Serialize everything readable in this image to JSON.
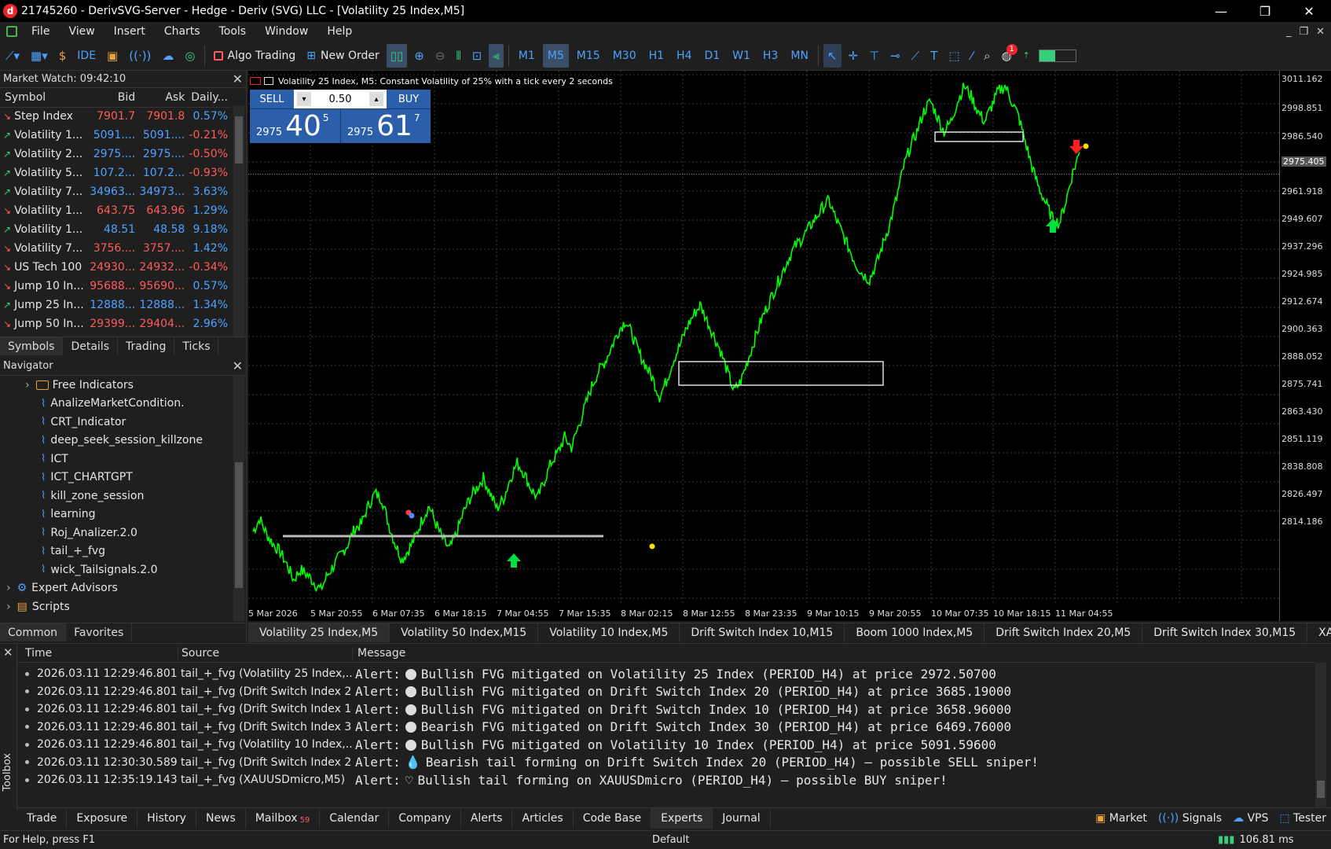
{
  "window": {
    "title": "21745260 - DerivSVG-Server - Hedge - Deriv (SVG) LLC - [Volatility 25 Index,M5]",
    "logo_letter": "d"
  },
  "menu": [
    "File",
    "View",
    "Insert",
    "Charts",
    "Tools",
    "Window",
    "Help"
  ],
  "toolbar": {
    "ide_label": "IDE",
    "algo_trading_label": "Algo Trading",
    "new_order_label": "New Order",
    "timeframes": [
      "M1",
      "M5",
      "M15",
      "M30",
      "H1",
      "H4",
      "D1",
      "W1",
      "H3",
      "MN"
    ],
    "active_timeframe": "M5",
    "notification_count": "1"
  },
  "market_watch": {
    "title": "Market Watch: 09:42:10",
    "columns": [
      "Symbol",
      "Bid",
      "Ask",
      "Daily..."
    ],
    "rows": [
      {
        "dir": "down",
        "symbol": "Step Index",
        "bid": "7901.7",
        "ask": "7901.8",
        "daily": "0.57%"
      },
      {
        "dir": "up",
        "symbol": "Volatility 1...",
        "bid": "5091....",
        "ask": "5091....",
        "daily": "-0.21%"
      },
      {
        "dir": "up",
        "symbol": "Volatility 2...",
        "bid": "2975....",
        "ask": "2975....",
        "daily": "-0.50%"
      },
      {
        "dir": "up",
        "symbol": "Volatility 5...",
        "bid": "107.2...",
        "ask": "107.2...",
        "daily": "-0.93%"
      },
      {
        "dir": "up",
        "symbol": "Volatility 7...",
        "bid": "34963...",
        "ask": "34973...",
        "daily": "3.63%"
      },
      {
        "dir": "down",
        "symbol": "Volatility 1...",
        "bid": "643.75",
        "ask": "643.96",
        "daily": "1.29%"
      },
      {
        "dir": "up",
        "symbol": "Volatility 1...",
        "bid": "48.51",
        "ask": "48.58",
        "daily": "9.18%"
      },
      {
        "dir": "down",
        "symbol": "Volatility 7...",
        "bid": "3756....",
        "ask": "3757....",
        "daily": "1.42%"
      },
      {
        "dir": "down",
        "symbol": "US Tech 100",
        "bid": "24930...",
        "ask": "24932...",
        "daily": "-0.34%"
      },
      {
        "dir": "down",
        "symbol": "Jump 10 In...",
        "bid": "95688...",
        "ask": "95690...",
        "daily": "0.57%"
      },
      {
        "dir": "up",
        "symbol": "Jump 25 In...",
        "bid": "12888...",
        "ask": "12888...",
        "daily": "1.34%"
      },
      {
        "dir": "down",
        "symbol": "Jump 50 In...",
        "bid": "29399...",
        "ask": "29404...",
        "daily": "2.96%"
      }
    ],
    "tabs": [
      "Symbols",
      "Details",
      "Trading",
      "Ticks"
    ]
  },
  "navigator": {
    "title": "Navigator",
    "folder": "Free Indicators",
    "indicators": [
      "AnalizeMarketCondition.",
      "CRT_Indicator",
      "deep_seek_session_killzone",
      "ICT",
      "ICT_CHARTGPT",
      "kill_zone_session",
      "learning",
      "Roj_Analizer.2.0",
      "tail_+_fvg",
      "wick_Tailsignals.2.0"
    ],
    "expert_advisors": "Expert Advisors",
    "scripts": "Scripts",
    "tabs": [
      "Common",
      "Favorites"
    ]
  },
  "chart": {
    "header": "Volatility 25 Index, M5:  Constant Volatility of 25% with a tick every 2 seconds",
    "sell_label": "SELL",
    "buy_label": "BUY",
    "volume": "0.50",
    "sell_small": "2975",
    "sell_big": "40",
    "sell_sup": "5",
    "buy_small": "2975",
    "buy_big": "61",
    "buy_sup": "7",
    "price_labels": [
      "3011.162",
      "2998.851",
      "2986.540",
      "2975.405",
      "2961.918",
      "2949.607",
      "2937.296",
      "2924.985",
      "2912.674",
      "2900.363",
      "2888.052",
      "2875.741",
      "2863.430",
      "2851.119",
      "2838.808",
      "2826.497",
      "2814.186"
    ],
    "current_price": "2975.405",
    "time_labels": [
      "5 Mar 2026",
      "5 Mar 20:55",
      "6 Mar 07:35",
      "6 Mar 18:15",
      "7 Mar 04:55",
      "7 Mar 15:35",
      "8 Mar 02:15",
      "8 Mar 12:55",
      "8 Mar 23:35",
      "9 Mar 10:15",
      "9 Mar 20:55",
      "10 Mar 07:35",
      "10 Mar 18:15",
      "11 Mar 04:55"
    ],
    "line_color": "#00ff00"
  },
  "chart_data": {
    "type": "line",
    "ylim": [
      2806,
      3016
    ],
    "path": [
      [
        0,
        2835
      ],
      [
        3,
        2840
      ],
      [
        6,
        2834
      ],
      [
        9,
        2830
      ],
      [
        12,
        2827
      ],
      [
        15,
        2822
      ],
      [
        18,
        2816
      ],
      [
        21,
        2820
      ],
      [
        24,
        2818
      ],
      [
        27,
        2815
      ],
      [
        30,
        2812
      ],
      [
        33,
        2818
      ],
      [
        36,
        2822
      ],
      [
        39,
        2826
      ],
      [
        42,
        2830
      ],
      [
        45,
        2836
      ],
      [
        48,
        2838
      ],
      [
        51,
        2845
      ],
      [
        54,
        2850
      ],
      [
        57,
        2848
      ],
      [
        60,
        2838
      ],
      [
        63,
        2830
      ],
      [
        66,
        2824
      ],
      [
        69,
        2828
      ],
      [
        72,
        2833
      ],
      [
        75,
        2840
      ],
      [
        78,
        2845
      ],
      [
        81,
        2838
      ],
      [
        84,
        2832
      ],
      [
        87,
        2828
      ],
      [
        90,
        2834
      ],
      [
        93,
        2842
      ],
      [
        96,
        2848
      ],
      [
        99,
        2852
      ],
      [
        102,
        2856
      ],
      [
        105,
        2850
      ],
      [
        108,
        2844
      ],
      [
        111,
        2848
      ],
      [
        114,
        2856
      ],
      [
        117,
        2862
      ],
      [
        120,
        2858
      ],
      [
        123,
        2852
      ],
      [
        126,
        2848
      ],
      [
        129,
        2855
      ],
      [
        132,
        2862
      ],
      [
        135,
        2866
      ],
      [
        138,
        2872
      ],
      [
        141,
        2868
      ],
      [
        144,
        2876
      ],
      [
        147,
        2884
      ],
      [
        150,
        2892
      ],
      [
        153,
        2898
      ],
      [
        156,
        2902
      ],
      [
        159,
        2908
      ],
      [
        162,
        2914
      ],
      [
        165,
        2918
      ],
      [
        168,
        2912
      ],
      [
        171,
        2905
      ],
      [
        174,
        2900
      ],
      [
        177,
        2895
      ],
      [
        180,
        2888
      ],
      [
        183,
        2894
      ],
      [
        186,
        2902
      ],
      [
        189,
        2908
      ],
      [
        192,
        2915
      ],
      [
        195,
        2920
      ],
      [
        198,
        2924
      ],
      [
        201,
        2918
      ],
      [
        204,
        2912
      ],
      [
        207,
        2906
      ],
      [
        210,
        2898
      ],
      [
        213,
        2890
      ],
      [
        216,
        2894
      ],
      [
        219,
        2902
      ],
      [
        222,
        2910
      ],
      [
        225,
        2918
      ],
      [
        228,
        2924
      ],
      [
        231,
        2930
      ],
      [
        234,
        2936
      ],
      [
        237,
        2942
      ],
      [
        240,
        2947
      ],
      [
        243,
        2950
      ],
      [
        246,
        2954
      ],
      [
        249,
        2958
      ],
      [
        252,
        2962
      ],
      [
        255,
        2965
      ],
      [
        258,
        2958
      ],
      [
        261,
        2952
      ],
      [
        264,
        2946
      ],
      [
        267,
        2940
      ],
      [
        270,
        2936
      ],
      [
        273,
        2934
      ],
      [
        276,
        2940
      ],
      [
        279,
        2948
      ],
      [
        282,
        2956
      ],
      [
        285,
        2966
      ],
      [
        288,
        2978
      ],
      [
        291,
        2986
      ],
      [
        294,
        2992
      ],
      [
        297,
        3000
      ],
      [
        300,
        3004
      ],
      [
        303,
        2998
      ],
      [
        306,
        2992
      ],
      [
        309,
        2996
      ],
      [
        312,
        3004
      ],
      [
        315,
        3010
      ],
      [
        318,
        3006
      ],
      [
        321,
        3000
      ],
      [
        324,
        2996
      ],
      [
        327,
        3002
      ],
      [
        330,
        3008
      ],
      [
        333,
        3010
      ],
      [
        336,
        3004
      ],
      [
        339,
        2998
      ],
      [
        342,
        2988
      ],
      [
        345,
        2978
      ],
      [
        348,
        2970
      ],
      [
        351,
        2964
      ],
      [
        354,
        2958
      ],
      [
        357,
        2956
      ],
      [
        360,
        2965
      ],
      [
        363,
        2976
      ],
      [
        366,
        2984
      ]
    ]
  },
  "chart_tabs": [
    "Volatility 25 Index,M5",
    "Volatility 50 Index,M15",
    "Volatility 10 Index,M5",
    "Drift Switch Index 10,M15",
    "Boom 1000 Index,M5",
    "Drift Switch Index 20,M5",
    "Drift Switch Index 30,M15",
    "XAUUS"
  ],
  "toolbox": {
    "side_label": "Toolbox",
    "columns": [
      "Time",
      "Source",
      "Message"
    ],
    "rows": [
      {
        "time": "2026.03.11 12:29:46.801",
        "source": "tail_+_fvg (Volatility 25 Index,...",
        "prefix": "Alert:",
        "icon": "circle",
        "message": "Bullish FVG mitigated on Volatility 25 Index (PERIOD_H4) at price 2972.50700"
      },
      {
        "time": "2026.03.11 12:29:46.801",
        "source": "tail_+_fvg (Drift Switch Index 2...",
        "prefix": "Alert:",
        "icon": "circle",
        "message": "Bullish FVG mitigated on Drift Switch Index 20 (PERIOD_H4) at price 3685.19000"
      },
      {
        "time": "2026.03.11 12:29:46.801",
        "source": "tail_+_fvg (Drift Switch Index 1...",
        "prefix": "Alert:",
        "icon": "circle",
        "message": "Bullish FVG mitigated on Drift Switch Index 10 (PERIOD_H4) at price 3658.96000"
      },
      {
        "time": "2026.03.11 12:29:46.801",
        "source": "tail_+_fvg (Drift Switch Index 3...",
        "prefix": "Alert:",
        "icon": "circle",
        "message": "Bearish FVG mitigated on Drift Switch Index 30 (PERIOD_H4) at price 6469.76000"
      },
      {
        "time": "2026.03.11 12:29:46.801",
        "source": "tail_+_fvg (Volatility 10 Index,...",
        "prefix": "Alert:",
        "icon": "circle",
        "message": "Bullish FVG mitigated on Volatility 10 Index (PERIOD_H4) at price 5091.59600"
      },
      {
        "time": "2026.03.11 12:30:30.589",
        "source": "tail_+_fvg (Drift Switch Index 2...",
        "prefix": "Alert:",
        "icon": "drop",
        "message": "Bearish tail forming on Drift Switch Index 20 (PERIOD_H4) — possible SELL sniper!"
      },
      {
        "time": "2026.03.11 12:35:19.143",
        "source": "tail_+_fvg (XAUUSDmicro,M5)",
        "prefix": "Alert:",
        "icon": "heart",
        "message": "Bullish tail forming on XAUUSDmicro (PERIOD_H4) — possible BUY sniper!"
      }
    ],
    "tabs": [
      "Trade",
      "Exposure",
      "History",
      "News",
      "Mailbox",
      "Calendar",
      "Company",
      "Alerts",
      "Articles",
      "Code Base",
      "Experts",
      "Journal"
    ],
    "mailbox_badge": "59",
    "active_tab": "Experts",
    "right_items": [
      "Market",
      "Signals",
      "VPS",
      "Tester"
    ]
  },
  "status": {
    "help": "For Help, press F1",
    "profile": "Default",
    "ping": "106.81 ms"
  }
}
